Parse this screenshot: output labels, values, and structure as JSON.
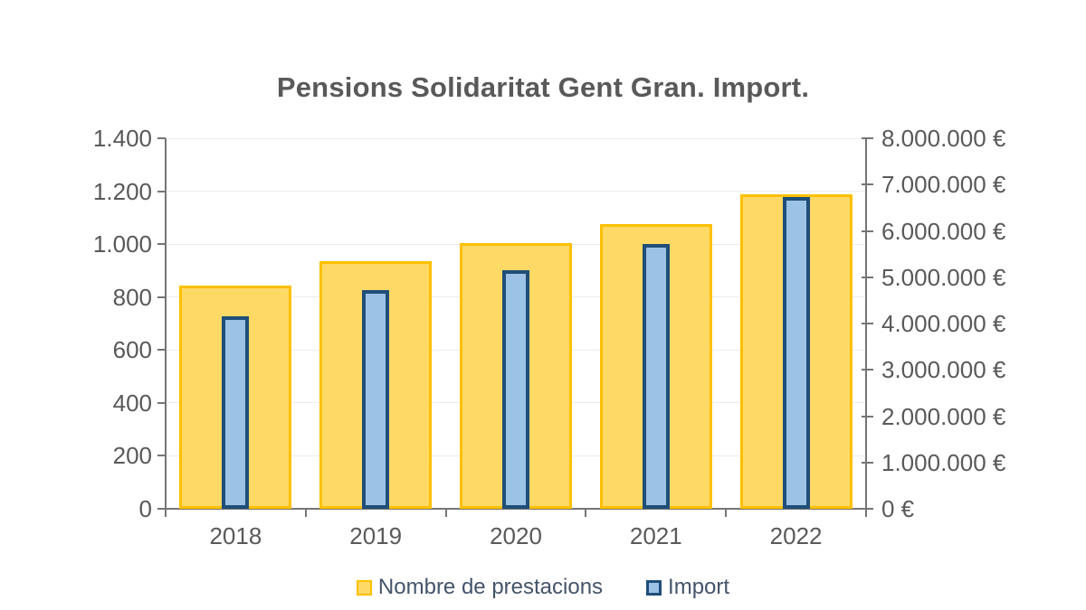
{
  "title": "Pensions Solidaritat Gent Gran. Import.",
  "colors": {
    "title_text": "#595959",
    "axis_text": "#595959",
    "legend_text": "#44546A",
    "axis_line": "#757575",
    "gridline": "#ECECEC",
    "background": "#FFFFFF",
    "prestacions_fill": "#FFD966",
    "prestacions_border": "#FFC000",
    "import_fill": "#9CC2E5",
    "import_border": "#1F4E79"
  },
  "chart_data": {
    "type": "bar",
    "title": "Pensions Solidaritat Gent Gran. Import.",
    "categories": [
      "2018",
      "2019",
      "2020",
      "2021",
      "2022"
    ],
    "series": [
      {
        "name": "Nombre de prestacions",
        "axis": "left",
        "values": [
          845,
          935,
          1005,
          1075,
          1190
        ]
      },
      {
        "name": "Import",
        "axis": "right",
        "values": [
          4150000,
          4720000,
          5150000,
          5710000,
          6740000
        ]
      }
    ],
    "left_axis": {
      "min": 0,
      "max": 1400,
      "tick_step": 200,
      "tick_labels": [
        "0",
        "200",
        "400",
        "600",
        "800",
        "1.000",
        "1.200",
        "1.400"
      ]
    },
    "right_axis": {
      "min": 0,
      "max": 8000000,
      "tick_step": 1000000,
      "tick_labels": [
        "0 €",
        "1.000.000 €",
        "2.000.000 €",
        "3.000.000 €",
        "4.000.000 €",
        "5.000.000 €",
        "6.000.000 €",
        "7.000.000 €",
        "8.000.000 €"
      ]
    },
    "legend": [
      "Nombre de prestacions",
      "Import"
    ],
    "legend_position": "bottom",
    "grid": true
  }
}
